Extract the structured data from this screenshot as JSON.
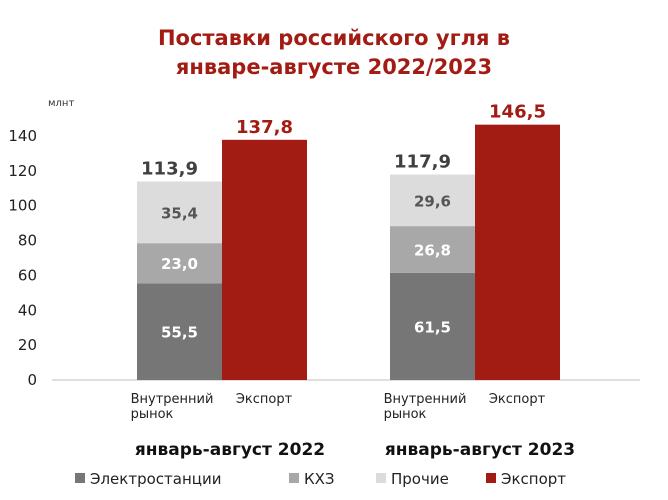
{
  "chart_data": {
    "type": "bar",
    "stacked": true,
    "title_lines": [
      "Поставки российского угля в",
      "январе-августе 2022/2023"
    ],
    "ylabel": "млнт",
    "ylim": [
      0,
      140
    ],
    "yticks": [
      "0",
      "20",
      "40",
      "60",
      "80",
      "100",
      "120",
      "140"
    ],
    "grid": false,
    "legend_position": "bottom",
    "groups": [
      {
        "name": "январь-август 2022",
        "bars": [
          {
            "category": "Внутренний рынок",
            "category_lines": [
              "Внутренний",
              "рынок"
            ],
            "total_label": "113,9",
            "segments": [
              {
                "series": "Электростанции",
                "value": 55.5,
                "label": "55,5"
              },
              {
                "series": "КХЗ",
                "value": 23.0,
                "label": "23,0"
              },
              {
                "series": "Прочие",
                "value": 35.4,
                "label": "35,4"
              }
            ]
          },
          {
            "category": "Экспорт",
            "category_lines": [
              "Экспорт"
            ],
            "total_label": "137,8",
            "segments": [
              {
                "series": "Экспорт",
                "value": 137.8
              }
            ]
          }
        ]
      },
      {
        "name": "январь-август 2023",
        "bars": [
          {
            "category": "Внутренний рынок",
            "category_lines": [
              "Внутренний",
              "рынок"
            ],
            "total_label": "117,9",
            "segments": [
              {
                "series": "Электростанции",
                "value": 61.5,
                "label": "61,5"
              },
              {
                "series": "КХЗ",
                "value": 26.8,
                "label": "26,8"
              },
              {
                "series": "Прочие",
                "value": 29.6,
                "label": "29,6"
              }
            ]
          },
          {
            "category": "Экспорт",
            "category_lines": [
              "Экспорт"
            ],
            "total_label": "146,5",
            "segments": [
              {
                "series": "Экспорт",
                "value": 146.5
              }
            ]
          }
        ]
      }
    ],
    "series": [
      {
        "name": "Электростанции",
        "color": "#767676"
      },
      {
        "name": "КХЗ",
        "color": "#a8a8a8"
      },
      {
        "name": "Прочие",
        "color": "#dcdcdc"
      },
      {
        "name": "Экспорт",
        "color": "#a21c14"
      }
    ]
  }
}
